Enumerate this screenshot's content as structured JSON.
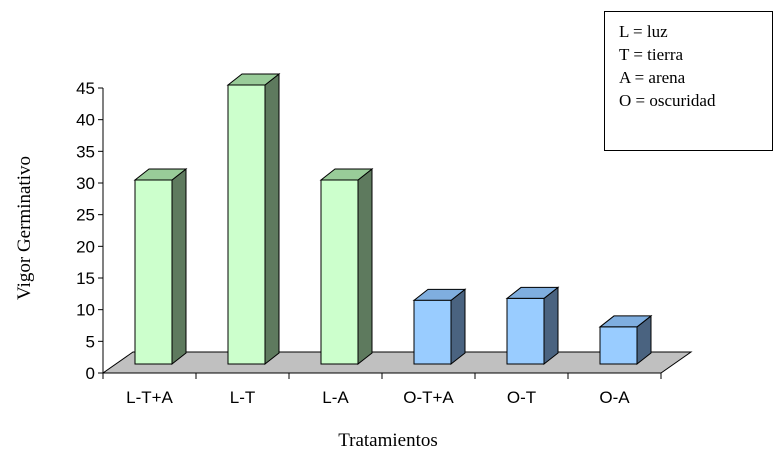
{
  "chart_data": {
    "type": "bar",
    "categories": [
      "L-T+A",
      "L-T",
      "L-A",
      "O-T+A",
      "O-T",
      "O-A"
    ],
    "values": [
      30,
      45,
      30,
      11,
      11.3,
      6.8
    ],
    "xlabel": "Tratamientos",
    "ylabel": "Vigor Germinativo",
    "ylim": [
      0,
      45
    ],
    "yticks": [
      0,
      5,
      10,
      15,
      20,
      25,
      30,
      35,
      40,
      45
    ],
    "grid": false,
    "three_d": true,
    "bar_colors": {
      "light_front": "#CCFFCC",
      "light_side": "#5E7A5E",
      "light_top": "#99CC99",
      "dark_front": "#99CCFF",
      "dark_side": "#4A6380",
      "dark_top": "#7FAEDF"
    },
    "floor_color": "#C0C0C0",
    "legend": {
      "placement": "top-right",
      "entries": [
        "L = luz",
        "T = tierra",
        "A = arena",
        "O = oscuridad"
      ]
    }
  }
}
